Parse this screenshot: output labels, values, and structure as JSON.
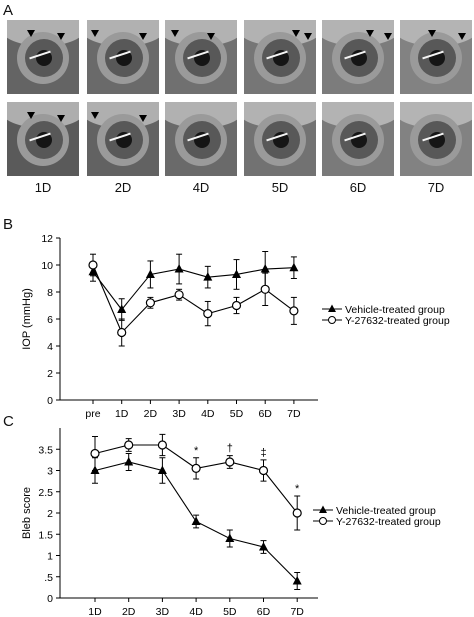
{
  "panels": {
    "a_letter": "A",
    "b_letter": "B",
    "c_letter": "C"
  },
  "photo_panel": {
    "day_labels": [
      "1D",
      "2D",
      "4D",
      "5D",
      "6D",
      "7D"
    ],
    "icon": "eye-photo-icon"
  },
  "chart_data": [
    {
      "id": "B",
      "type": "line",
      "ylabel": "IOP (mmHg)",
      "xlabel": "",
      "categories": [
        "pre",
        "1D",
        "2D",
        "3D",
        "4D",
        "5D",
        "6D",
        "7D"
      ],
      "ylim": [
        0,
        12
      ],
      "yticks": [
        0,
        2,
        4,
        6,
        8,
        10,
        12
      ],
      "legend_position": "right",
      "series": [
        {
          "name": "Vehicle-treated group",
          "marker": "filled-triangle",
          "values": [
            9.5,
            6.7,
            9.3,
            9.7,
            9.1,
            9.3,
            9.7,
            9.8
          ],
          "errors": [
            0.7,
            0.8,
            1.0,
            1.1,
            0.8,
            1.1,
            1.3,
            0.8
          ]
        },
        {
          "name": "Y-27632-treated group",
          "marker": "open-circle",
          "values": [
            10.0,
            5.0,
            7.2,
            7.8,
            6.4,
            7.0,
            8.2,
            6.6
          ],
          "errors": [
            0.8,
            1.0,
            0.4,
            0.4,
            0.9,
            0.6,
            1.2,
            1.0
          ]
        }
      ]
    },
    {
      "id": "C",
      "type": "line",
      "ylabel": "Bleb score",
      "xlabel": "",
      "categories": [
        "1D",
        "2D",
        "3D",
        "4D",
        "5D",
        "6D",
        "7D"
      ],
      "ylim": [
        0,
        4
      ],
      "yticks": [
        0,
        0.5,
        1,
        1.5,
        2,
        2.5,
        3,
        3.5
      ],
      "ytick_labels": [
        "0",
        ".5",
        "1",
        "1.5",
        "2",
        "2.5",
        "3",
        "3.5"
      ],
      "legend_position": "right",
      "significance": [
        "",
        "",
        "",
        "*",
        "†",
        "‡",
        "*"
      ],
      "series": [
        {
          "name": "Vehicle-treated group",
          "marker": "filled-triangle",
          "values": [
            3.0,
            3.2,
            3.0,
            1.8,
            1.4,
            1.2,
            0.4
          ],
          "errors": [
            0.3,
            0.2,
            0.3,
            0.15,
            0.2,
            0.15,
            0.2
          ]
        },
        {
          "name": "Y-27632-treated group",
          "marker": "open-circle",
          "values": [
            3.4,
            3.6,
            3.6,
            3.05,
            3.2,
            3.0,
            2.0
          ],
          "errors": [
            0.4,
            0.15,
            0.25,
            0.25,
            0.15,
            0.25,
            0.4
          ]
        }
      ]
    }
  ]
}
